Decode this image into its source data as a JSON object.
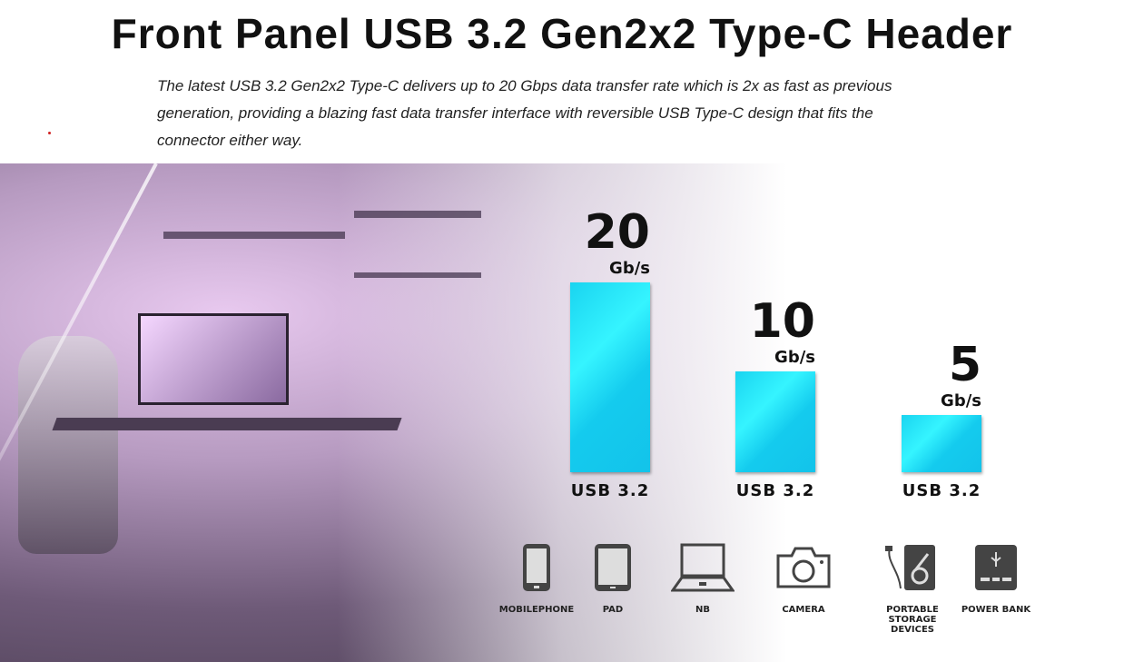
{
  "title": "Front Panel USB 3.2 Gen2x2 Type-C Header",
  "description": [
    "The latest USB 3.2 Gen2x2 Type-C delivers up to 20 Gbps data transfer rate which is 2x as fast as previous",
    "generation, providing a blazing fast data transfer interface with reversible USB Type-C design that fits the",
    "connector either way."
  ],
  "chart_data": {
    "type": "bar",
    "categories": [
      "USB 3.2",
      "USB 3.2",
      "USB 3.2"
    ],
    "values": [
      20,
      10,
      5
    ],
    "value_labels": [
      "20",
      "10",
      "5"
    ],
    "unit": "Gb/s",
    "bar_color": "#1ad4f0"
  },
  "devices": [
    {
      "label": "MOBILEPHONE",
      "icon": "mobile-phone-icon"
    },
    {
      "label": "PAD",
      "icon": "tablet-icon"
    },
    {
      "label": "NB",
      "icon": "laptop-icon"
    },
    {
      "label": "CAMERA",
      "icon": "camera-icon"
    },
    {
      "label": "PORTABLE STORAGE DEVICES",
      "icon": "portable-storage-icon"
    },
    {
      "label": "POWER BANK",
      "icon": "power-bank-icon"
    }
  ]
}
